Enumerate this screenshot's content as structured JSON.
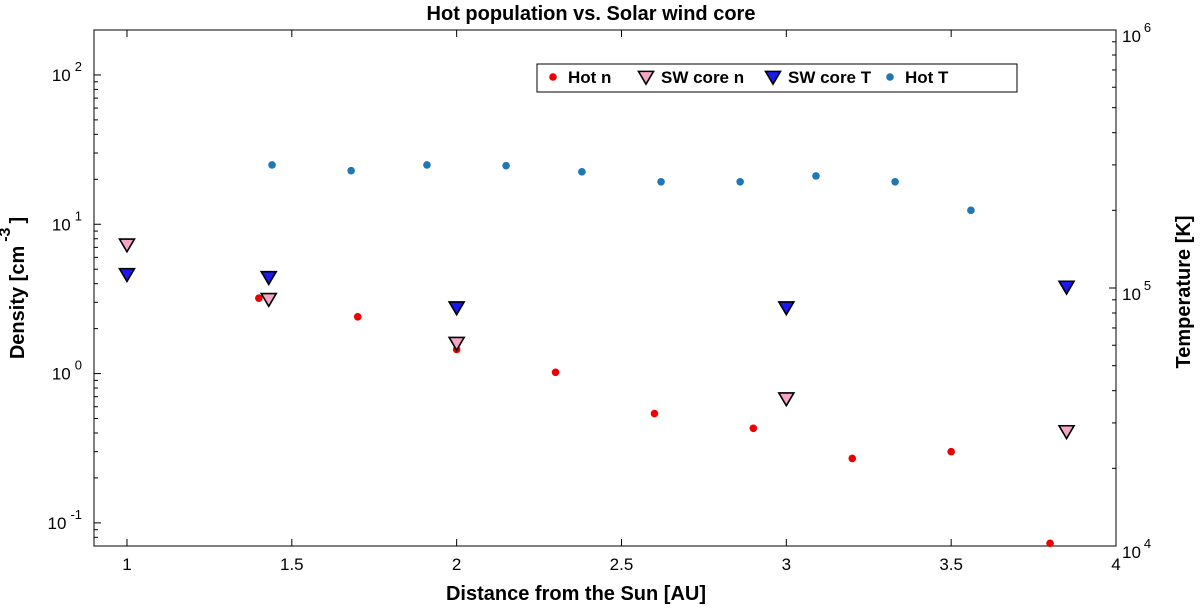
{
  "chart_data": {
    "type": "scatter",
    "title": "Hot population vs. Solar wind core",
    "xlabel": "Distance from the Sun [AU]",
    "ylabel_left": "Density [cm",
    "ylabel_left_exp": "-3",
    "ylabel_left_close": "]",
    "ylabel_right": "Temperature [K]",
    "xlim": [
      0.9,
      4.0
    ],
    "ylim_left": [
      0.07,
      200
    ],
    "ylim_right": [
      10000,
      1000000
    ],
    "x_ticks": [
      {
        "value": 1,
        "label": "1"
      },
      {
        "value": 1.5,
        "label": "1.5"
      },
      {
        "value": 2,
        "label": "2"
      },
      {
        "value": 2.5,
        "label": "2.5"
      },
      {
        "value": 3,
        "label": "3"
      },
      {
        "value": 3.5,
        "label": "3.5"
      },
      {
        "value": 4,
        "label": "4"
      }
    ],
    "y_left_ticks": [
      {
        "value": 0.1,
        "base": "10",
        "exp": "-1"
      },
      {
        "value": 1,
        "base": "10",
        "exp": "0"
      },
      {
        "value": 10,
        "base": "10",
        "exp": "1"
      },
      {
        "value": 100,
        "base": "10",
        "exp": "2"
      }
    ],
    "y_right_ticks": [
      {
        "value": 10000,
        "base": "10",
        "exp": "4"
      },
      {
        "value": 100000,
        "base": "10",
        "exp": "5"
      },
      {
        "value": 1000000,
        "base": "10",
        "exp": "6"
      }
    ],
    "series": [
      {
        "name": "Hot n",
        "axis": "left",
        "marker": "dot",
        "color": "#ee0000",
        "x": [
          1.4,
          1.7,
          2.0,
          2.3,
          2.6,
          2.9,
          3.2,
          3.5,
          3.8
        ],
        "y": [
          3.2,
          2.4,
          1.45,
          1.02,
          0.54,
          0.43,
          0.27,
          0.3,
          0.073
        ]
      },
      {
        "name": "SW core n",
        "axis": "left",
        "marker": "triangle-down",
        "color": "#f4a6c6",
        "x": [
          1.0,
          1.43,
          2.0,
          3.0,
          3.85
        ],
        "y": [
          7.3,
          3.15,
          1.6,
          0.68,
          0.41
        ]
      },
      {
        "name": "SW core T",
        "axis": "right",
        "marker": "triangle-down",
        "color": "#1a1aee",
        "x": [
          1.0,
          1.43,
          2.0,
          3.0,
          3.85
        ],
        "y": [
          113000,
          110000,
          84000,
          84000,
          101000
        ]
      },
      {
        "name": "Hot T",
        "axis": "right",
        "marker": "dot",
        "color": "#1f77b4",
        "x": [
          1.44,
          1.68,
          1.91,
          2.15,
          2.38,
          2.62,
          2.86,
          3.09,
          3.33,
          3.56
        ],
        "y": [
          300000,
          285000,
          300000,
          298000,
          282000,
          258000,
          258000,
          272000,
          258000,
          200000
        ]
      }
    ],
    "legend_position": "top-right"
  }
}
